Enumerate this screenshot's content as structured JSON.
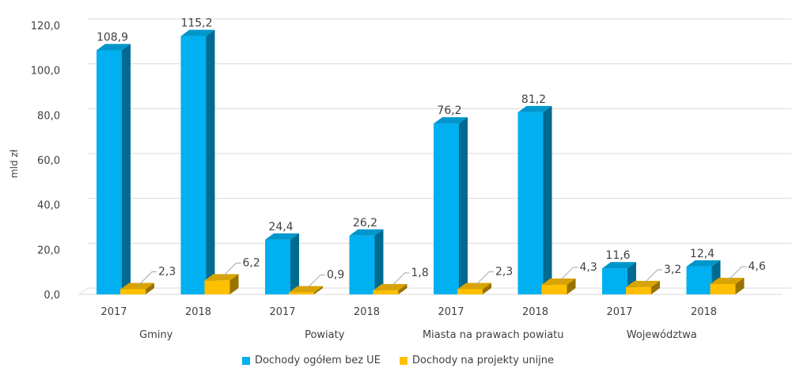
{
  "chart_data": {
    "type": "bar",
    "style": "3d-clustered-column",
    "ylabel": "mld zł",
    "ylim": [
      0,
      120
    ],
    "yticks": [
      "0,0",
      "20,0",
      "40,0",
      "60,0",
      "80,0",
      "100,0",
      "120,0"
    ],
    "ytick_values": [
      0,
      20,
      40,
      60,
      80,
      100,
      120
    ],
    "grid": true,
    "legend_position": "bottom",
    "groups": [
      {
        "label": "Gminy",
        "years": [
          "2017",
          "2018"
        ]
      },
      {
        "label": "Powiaty",
        "years": [
          "2017",
          "2018"
        ]
      },
      {
        "label": "Miasta na prawach powiatu",
        "years": [
          "2017",
          "2018"
        ]
      },
      {
        "label": "Województwa",
        "years": [
          "2017",
          "2018"
        ]
      }
    ],
    "categories": [
      "2017",
      "2018",
      "2017",
      "2018",
      "2017",
      "2018",
      "2017",
      "2018"
    ],
    "series": [
      {
        "name": "Dochody ogółem bez UE",
        "color": "#00B0F0",
        "values": [
          108.9,
          115.2,
          24.4,
          26.2,
          76.2,
          81.2,
          11.6,
          12.4
        ],
        "labels": [
          "108,9",
          "115,2",
          "24,4",
          "26,2",
          "76,2",
          "81,2",
          "11,6",
          "12,4"
        ]
      },
      {
        "name": "Dochody na projekty unijne",
        "color": "#FFC000",
        "values": [
          2.3,
          6.2,
          0.9,
          1.8,
          2.3,
          4.3,
          3.2,
          4.6
        ],
        "labels": [
          "2,3",
          "6,2",
          "0,9",
          "1,8",
          "2,3",
          "4,3",
          "3,2",
          "4,6"
        ]
      }
    ]
  }
}
